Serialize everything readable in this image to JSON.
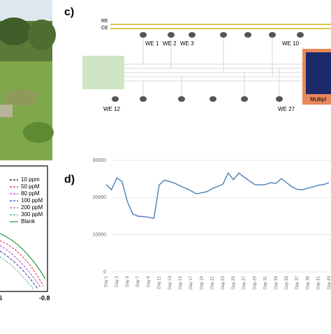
{
  "panel_c": {
    "label": "c)",
    "re": "RE",
    "ce": "CE",
    "top_electrodes": [
      "WE 1",
      "WE 2",
      "WE 3",
      "WE 10"
    ],
    "bottom_electrodes": [
      "WE 12",
      "WE 27"
    ],
    "box_label": "Multipl"
  },
  "left_chart": {
    "legend": [
      "10 ppm",
      "50 ppM",
      "80 ppM",
      "100 ppM",
      "200 ppM",
      "300 ppM",
      "Blank"
    ],
    "xtick_labels": [
      "6",
      "-0.8"
    ]
  },
  "chart_data": {
    "type": "line",
    "label": "d)",
    "categories": [
      "Day 1",
      null,
      "Day 3",
      null,
      "Day 5",
      null,
      "Day 7",
      null,
      "Day 9",
      null,
      "Day 11",
      null,
      "Day 13",
      null,
      "Day 15",
      null,
      "Day 17",
      null,
      "Day 19",
      null,
      "Day 21",
      null,
      "Day 23",
      null,
      "Day 25",
      null,
      "Day 27",
      null,
      "Day 29",
      null,
      "Day 31",
      null,
      "Day 33",
      null,
      "Day 35",
      null,
      "Day 37",
      null,
      "Day 39",
      null,
      "Day 41",
      null,
      "Day 43"
    ],
    "series": [
      {
        "name": null,
        "color": "#4a7fb5",
        "values": [
          23500,
          22100,
          25300,
          24300,
          18900,
          15600,
          15000,
          14900,
          14700,
          14400,
          23400,
          24700,
          24300,
          23800,
          23100,
          22500,
          21800,
          21000,
          21300,
          21600,
          22400,
          23000,
          23600,
          26600,
          24800,
          26600,
          25500,
          24500,
          23500,
          23400,
          23500,
          24000,
          23800,
          25100,
          24000,
          22900,
          22200,
          22100,
          22500,
          22900,
          23300,
          23500,
          24000
        ]
      }
    ],
    "ylim": [
      0,
      30000
    ],
    "yticks": [
      0,
      10000,
      20000,
      30000
    ],
    "grid": true
  }
}
